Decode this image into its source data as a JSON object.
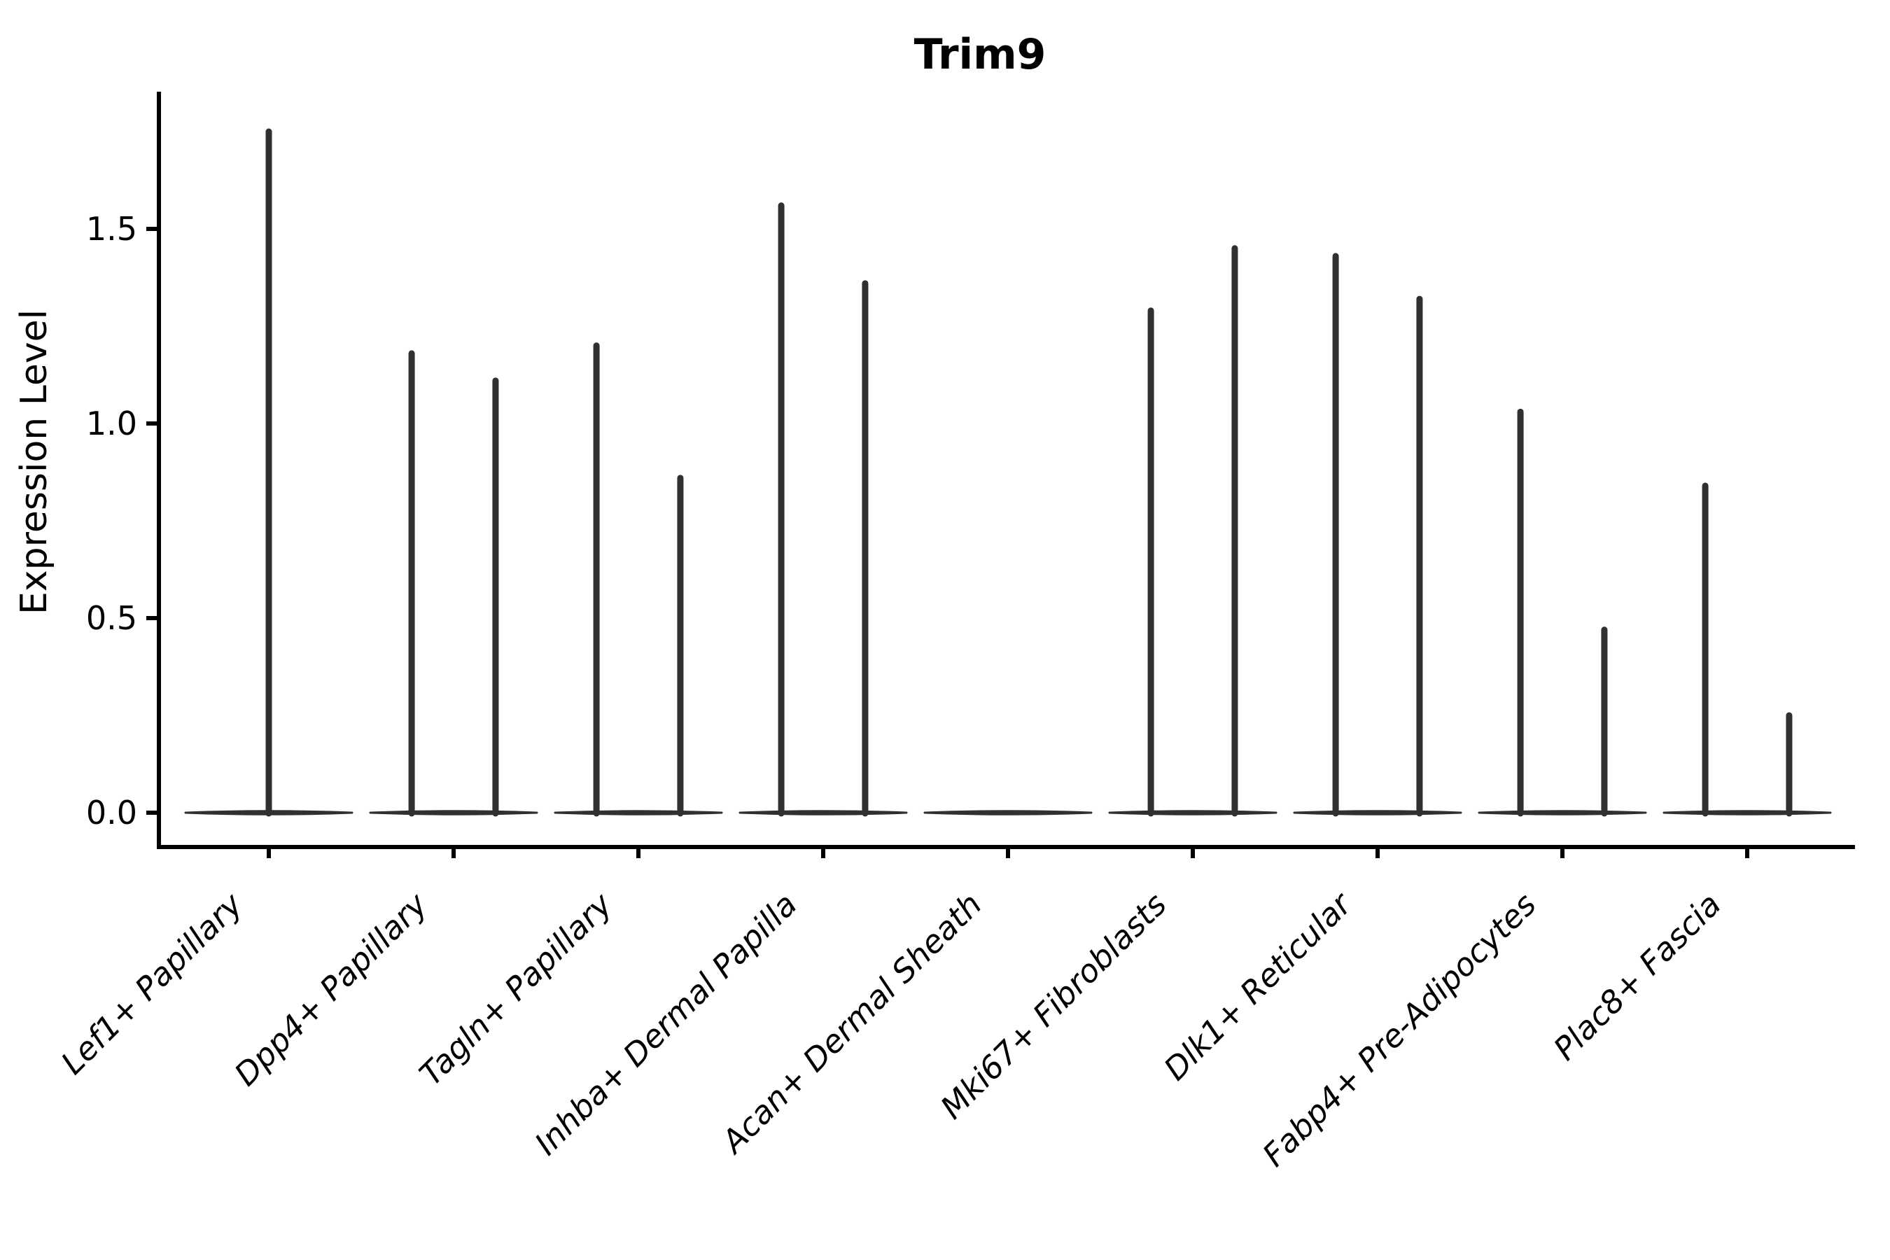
{
  "chart_data": {
    "type": "violin",
    "title": "Trim9",
    "xlabel": "",
    "ylabel": "Expression Level",
    "ylim": [
      -0.09,
      1.87
    ],
    "ytick_labels": [
      "0.0",
      "0.5",
      "1.0",
      "1.5"
    ],
    "ytick_values": [
      0.0,
      0.5,
      1.0,
      1.5
    ],
    "grid": false,
    "legend": "none",
    "violin_color": "#303030",
    "axis_color": "#000000",
    "note": "Each category shows an ultra-flat violin at expression 0 with thin spikes reaching the maximum expression of rare expressing cells; offset is the spike position as a fraction of category spacing; max is the spike top in Expression Level units.",
    "categories": [
      {
        "label": "Lef1+ Papillary",
        "violins": [
          {
            "offset": 0.0,
            "max": 1.75
          }
        ]
      },
      {
        "label": "Dpp4+ Papillary",
        "violins": [
          {
            "offset": -0.227,
            "max": 1.18
          },
          {
            "offset": 0.227,
            "max": 1.11
          }
        ]
      },
      {
        "label": "Tagln+ Papillary",
        "violins": [
          {
            "offset": -0.227,
            "max": 1.2
          },
          {
            "offset": 0.227,
            "max": 0.86
          }
        ]
      },
      {
        "label": "Inhba+ Dermal Papilla",
        "violins": [
          {
            "offset": -0.227,
            "max": 1.56
          },
          {
            "offset": 0.227,
            "max": 1.36
          }
        ]
      },
      {
        "label": "Acan+ Dermal Sheath",
        "violins": []
      },
      {
        "label": "Mki67+ Fibroblasts",
        "violins": [
          {
            "offset": -0.227,
            "max": 1.29
          },
          {
            "offset": 0.227,
            "max": 1.45
          }
        ]
      },
      {
        "label": "Dlk1+ Reticular",
        "violins": [
          {
            "offset": -0.227,
            "max": 1.43
          },
          {
            "offset": 0.227,
            "max": 1.32
          }
        ]
      },
      {
        "label": "Fabp4+ Pre-Adipocytes",
        "violins": [
          {
            "offset": -0.227,
            "max": 1.03
          },
          {
            "offset": 0.227,
            "max": 0.47
          }
        ]
      },
      {
        "label": "Plac8+ Fascia",
        "violins": [
          {
            "offset": -0.227,
            "max": 0.84
          },
          {
            "offset": 0.227,
            "max": 0.25
          }
        ]
      }
    ],
    "baseline_value": 0.0
  }
}
